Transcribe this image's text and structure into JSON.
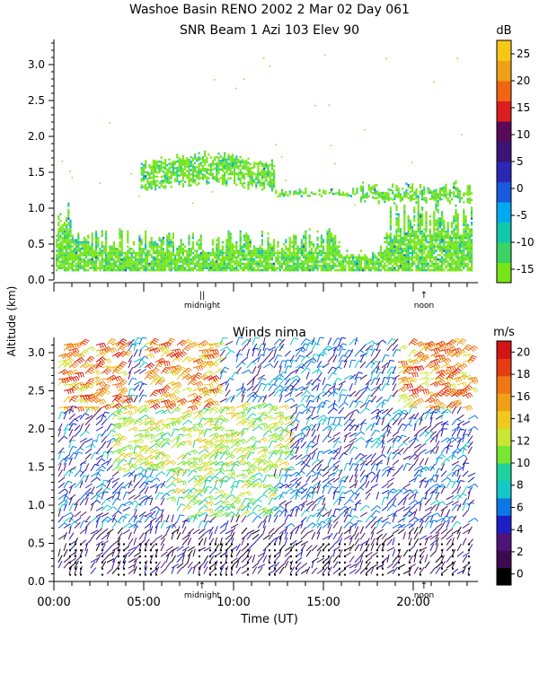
{
  "title_line1": "Washoe Basin RENO 2002    2 Mar 02 Day 061",
  "title_line2": "SNR Beam 1 Azi 103 Elev 90",
  "y_axis_label": "Altitude (km)",
  "x_axis_label": "Time (UT)",
  "chart_data": [
    {
      "type": "heatmap",
      "panel": "top",
      "xlim": [
        0,
        24
      ],
      "ylim": [
        0,
        3.35
      ],
      "yticks": [
        0.0,
        0.5,
        1.0,
        1.5,
        2.0,
        2.5,
        3.0
      ],
      "ytick_labels": [
        "0.0",
        "0.5",
        "1.0",
        "1.5",
        "2.0",
        "2.5",
        "3.0"
      ],
      "marker_labels": [
        {
          "x": 8.25,
          "text": "midnight",
          "symbol": "||"
        },
        {
          "x": 20.6,
          "text": "noon",
          "symbol": "↑"
        }
      ],
      "colorbar": {
        "unit": "dB",
        "ticks": [
          "-15",
          "-10",
          "-5",
          "0",
          "5",
          "10",
          "15",
          "20",
          "25"
        ],
        "colors": [
          "#78e614",
          "#3cd264",
          "#12c8aa",
          "#00aaf0",
          "#1a5adc",
          "#2828b4",
          "#3c1478",
          "#5a0a5a",
          "#dc1e1e",
          "#f06414",
          "#f0a014",
          "#f5c814"
        ]
      },
      "regions": [
        {
          "desc": "ground clutter layer",
          "x": [
            0,
            24
          ],
          "y": [
            0.12,
            0.85
          ]
        },
        {
          "desc": "elevated layer",
          "x": [
            5,
            12
          ],
          "y": [
            1.3,
            1.8
          ]
        },
        {
          "desc": "afternoon layer",
          "x": [
            19,
            24
          ],
          "y": [
            0.8,
            1.4
          ]
        }
      ]
    },
    {
      "type": "scatter",
      "panel": "bottom",
      "title": "Winds nima",
      "xlim": [
        0,
        24
      ],
      "ylim": [
        0,
        3.2
      ],
      "xticks": [
        0,
        5,
        10,
        15,
        20
      ],
      "xtick_labels": [
        "00:00",
        "05:00",
        "10:00",
        "15:00",
        "20:00"
      ],
      "yticks": [
        0.0,
        0.5,
        1.0,
        1.5,
        2.0,
        2.5,
        3.0
      ],
      "ytick_labels": [
        "0.0",
        "0.5",
        "1.0",
        "1.5",
        "2.0",
        "2.5",
        "3.0"
      ],
      "marker_labels": [
        {
          "x": 8.25,
          "text": "midnight",
          "symbol": "↑"
        },
        {
          "x": 20.6,
          "text": "noon",
          "symbol": "↑"
        }
      ],
      "colorbar": {
        "unit": "m/s",
        "ticks": [
          "0",
          "2",
          "4",
          "6",
          "8",
          "10",
          "12",
          "14",
          "16",
          "18",
          "20"
        ],
        "colors": [
          "#000000",
          "#3c0a50",
          "#501478",
          "#1e1ec8",
          "#0a78e6",
          "#14c8c8",
          "#1ed2a0",
          "#78e632",
          "#c8e632",
          "#f0c81e",
          "#f0a014",
          "#f07814",
          "#e63c14",
          "#d21414"
        ]
      }
    }
  ]
}
